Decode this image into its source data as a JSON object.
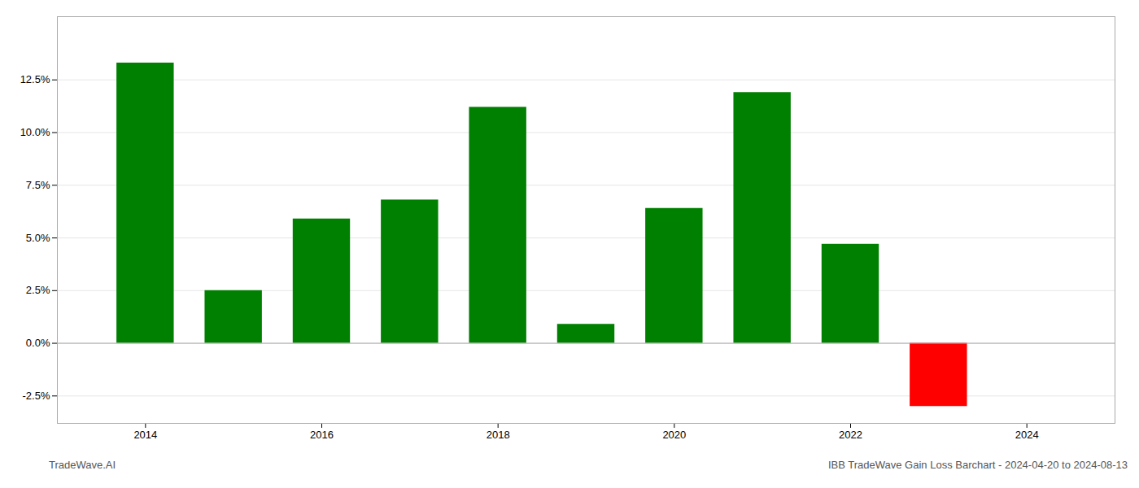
{
  "chart_data": {
    "type": "bar",
    "x": [
      2014,
      2015,
      2016,
      2017,
      2018,
      2019,
      2020,
      2021,
      2022,
      2023
    ],
    "values": [
      0.133,
      0.025,
      0.059,
      0.068,
      0.112,
      0.009,
      0.064,
      0.119,
      0.047,
      -0.03
    ],
    "colors": [
      "#008000",
      "#008000",
      "#008000",
      "#008000",
      "#008000",
      "#008000",
      "#008000",
      "#008000",
      "#008000",
      "#ff0000"
    ],
    "xlim": [
      2013.0,
      2025.0
    ],
    "xticks": [
      2014,
      2016,
      2018,
      2020,
      2022,
      2024
    ],
    "ylim": [
      -0.038,
      0.155
    ],
    "yticks": [
      {
        "value": -0.025,
        "label": "-2.5%"
      },
      {
        "value": 0.0,
        "label": "0.0%"
      },
      {
        "value": 0.025,
        "label": "2.5%"
      },
      {
        "value": 0.05,
        "label": "5.0%"
      },
      {
        "value": 0.075,
        "label": "7.5%"
      },
      {
        "value": 0.1,
        "label": "10.0%"
      },
      {
        "value": 0.125,
        "label": "12.5%"
      }
    ],
    "grid": true,
    "annotations": [
      "TradeWave.AI",
      "IBB TradeWave Gain Loss Barchart - 2024-04-20 to 2024-08-13"
    ]
  }
}
